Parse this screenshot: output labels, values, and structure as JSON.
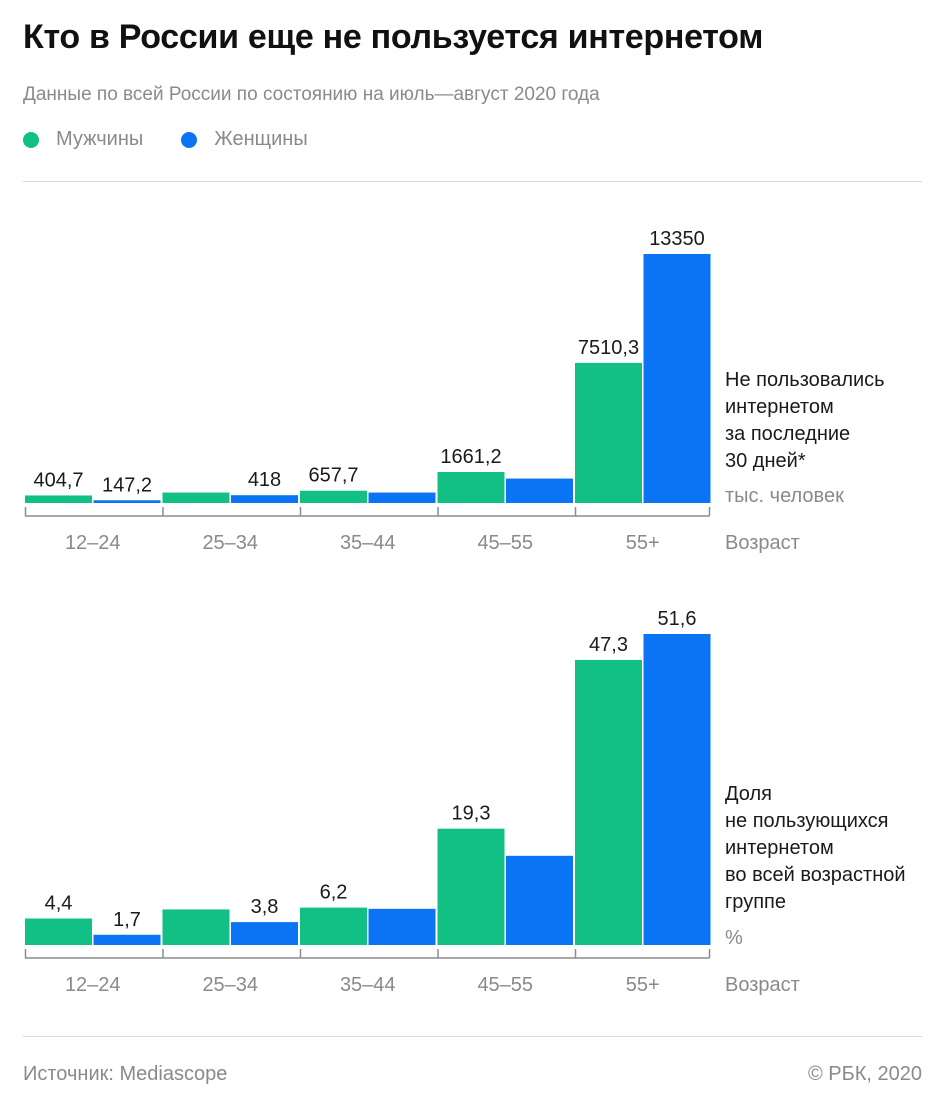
{
  "header": {
    "title": "Кто в России еще не пользуется интернетом",
    "subtitle": "Данные по всей России по состоянию на июль—август 2020 года"
  },
  "legend": [
    {
      "label": "Мужчины",
      "color": "#12bf85"
    },
    {
      "label": "Женщины",
      "color": "#0a74f5"
    }
  ],
  "colors": {
    "men": "#12bf85",
    "women": "#0a74f5",
    "axis": "#8c8c8c",
    "tick_text": "#8a8a8a",
    "value_text": "#1a1a1a"
  },
  "chart_data": [
    {
      "type": "bar",
      "categories": [
        "12–24",
        "25–34",
        "35–44",
        "45–55",
        "55+"
      ],
      "series": [
        {
          "name": "Мужчины",
          "values": [
            404.7,
            560,
            657.7,
            1661.2,
            7510.3
          ]
        },
        {
          "name": "Женщины",
          "values": [
            147.2,
            418,
            560,
            1310,
            13350
          ]
        }
      ],
      "labels": [
        [
          "404,7",
          "",
          "657,7",
          "1661,2",
          "7510,3"
        ],
        [
          "147,2",
          "418",
          "",
          "",
          "13350"
        ]
      ],
      "ylim": [
        0,
        13350
      ],
      "side_label_lines": [
        "Не пользовались",
        "интернетом",
        "за последние",
        "30 дней*"
      ],
      "unit": "тыс. человек",
      "xlabel": "Возраст",
      "grid": false
    },
    {
      "type": "bar",
      "categories": [
        "12–24",
        "25–34",
        "35–44",
        "45–55",
        "55+"
      ],
      "series": [
        {
          "name": "Мужчины",
          "values": [
            4.4,
            5.9,
            6.2,
            19.3,
            47.3
          ]
        },
        {
          "name": "Женщины",
          "values": [
            1.7,
            3.8,
            6.0,
            14.8,
            51.6
          ]
        }
      ],
      "labels": [
        [
          "4,4",
          "",
          "6,2",
          "19,3",
          "47,3"
        ],
        [
          "1,7",
          "3,8",
          "",
          "",
          "51,6"
        ]
      ],
      "ylim": [
        0,
        51.6
      ],
      "side_label_lines": [
        "Доля",
        "не пользующихся",
        "интернетом",
        "во всей возрастной",
        "группе"
      ],
      "unit": "%",
      "xlabel": "Возраст",
      "grid": false
    }
  ],
  "footer": {
    "source": "Источник: Mediascope",
    "copyright": "© РБК, 2020"
  }
}
